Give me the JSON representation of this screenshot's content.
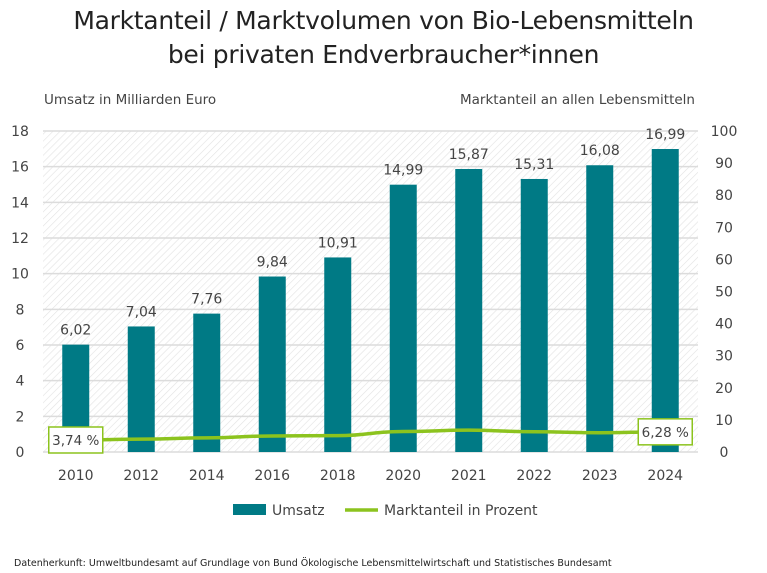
{
  "title_line1": "Marktanteil / Marktvolumen von Bio-Lebensmitteln",
  "title_line2": "bei privaten Endverbraucher*innen",
  "footnote": "Datenherkunft: Umweltbundesamt auf Grundlage von Bund Ökologische Lebensmittelwirtschaft und Statistisches Bundesamt",
  "chart_data": {
    "type": "bar",
    "categories": [
      "2010",
      "2012",
      "2014",
      "2016",
      "2018",
      "2020",
      "2021",
      "2022",
      "2023",
      "2024"
    ],
    "ylabel": "Umsatz in Milliarden Euro",
    "y2label": "Marktanteil an allen Lebensmitteln",
    "ylim": [
      0,
      18
    ],
    "y_ticks": [
      "0",
      "2",
      "4",
      "6",
      "8",
      "10",
      "12",
      "14",
      "16",
      "18"
    ],
    "y2lim": [
      0,
      100
    ],
    "y2_ticks": [
      "0",
      "10",
      "20",
      "30",
      "40",
      "50",
      "60",
      "70",
      "80",
      "90",
      "100"
    ],
    "grid": true,
    "legend_placement": "bottom",
    "series": [
      {
        "name": "Umsatz",
        "type": "bar",
        "axis": "left",
        "color": "#007a85",
        "values": [
          6.02,
          7.04,
          7.76,
          9.84,
          10.91,
          14.99,
          15.87,
          15.31,
          16.08,
          16.99
        ],
        "labels": [
          "6,02",
          "7,04",
          "7,76",
          "9,84",
          "10,91",
          "14,99",
          "15,87",
          "15,31",
          "16,08",
          "16,99"
        ]
      },
      {
        "name": "Marktanteil in Prozent",
        "type": "line",
        "axis": "right",
        "color": "#8cc31e",
        "values": [
          3.74,
          4.0,
          4.4,
          5.0,
          5.1,
          6.4,
          6.8,
          6.3,
          6.0,
          6.28
        ],
        "labels": {
          "0": "3,74 %",
          "9": "6,28 %"
        }
      }
    ]
  }
}
